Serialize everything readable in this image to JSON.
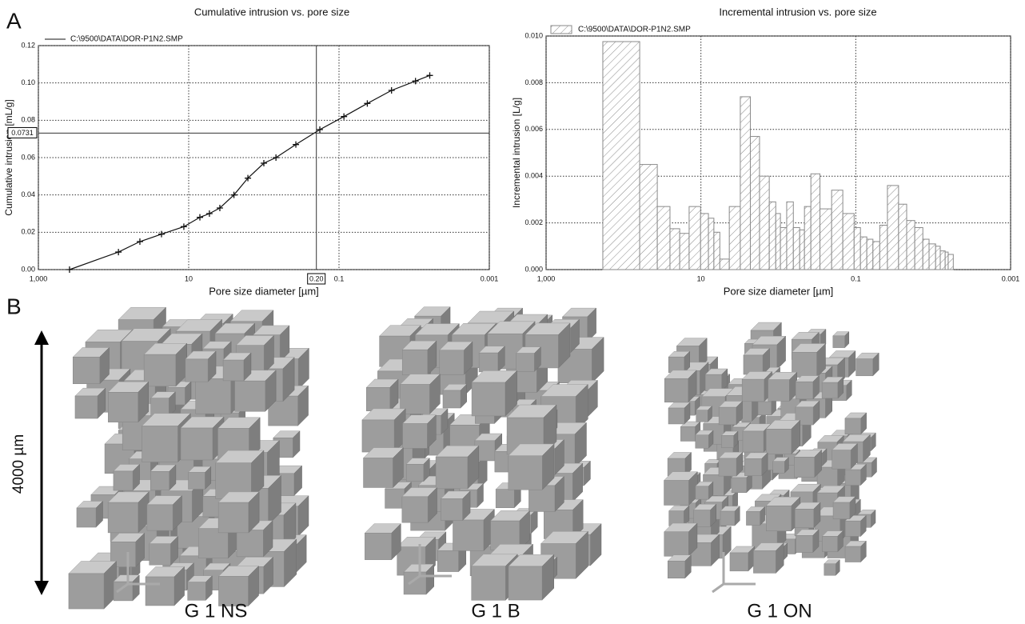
{
  "panel_labels": [
    "A",
    "B"
  ],
  "chart_data": [
    {
      "type": "line",
      "title": "Cumulative intrusion vs. pore size",
      "x_label": "Pore size diameter [µm]",
      "y_label": "Cumulative intrusion [mL/g]",
      "x_scale": "log",
      "xlim": [
        1000,
        0.001
      ],
      "xticks": [
        {
          "value": 1000,
          "label": "1,000"
        },
        10,
        0.1,
        0.001
      ],
      "ylim": [
        0,
        0.12
      ],
      "yticks": [
        {
          "value": 0,
          "label": "0.00"
        },
        {
          "value": 0.02,
          "label": "0.02"
        },
        {
          "value": 0.04,
          "label": "0.04"
        },
        {
          "value": 0.06,
          "label": "0.06"
        },
        {
          "value": 0.08,
          "label": "0.08"
        },
        {
          "value": 0.1,
          "label": "0.10"
        },
        {
          "value": 0.12,
          "label": "0.12"
        }
      ],
      "grid": true,
      "legend": "upper left",
      "cursor": {
        "x": {
          "value": 0.2,
          "label": "0.20"
        },
        "y": {
          "value": 0.0731,
          "label": "0.0731"
        }
      },
      "x": [
        385,
        86,
        44.6,
        23,
        11.6,
        7.1,
        5.3,
        3.85,
        2.5,
        1.63,
        1.0,
        0.69,
        0.375,
        0.18,
        0.086,
        0.042,
        0.02,
        0.0096,
        0.0062
      ],
      "series": [
        {
          "name": "C:\\9500\\DATA\\DOR-P1N2.SMP",
          "color": "#111111",
          "values": [
            0.0,
            0.0094,
            0.015,
            0.019,
            0.023,
            0.028,
            0.03,
            0.033,
            0.04,
            0.049,
            0.057,
            0.06,
            0.067,
            0.075,
            0.082,
            0.089,
            0.096,
            0.101,
            0.104
          ]
        }
      ]
    },
    {
      "type": "histogram",
      "title": "Incremental intrusion vs. pore size",
      "x_label": "Pore size diameter [µm]",
      "y_label": "Incremental intrusion [L/g]",
      "x_scale": "log",
      "xlim": [
        1000,
        0.001
      ],
      "xticks": [
        {
          "value": 1000,
          "label": "1,000"
        },
        10,
        0.1,
        0.001
      ],
      "ylim": [
        0,
        0.01
      ],
      "yticks": [
        {
          "value": 0,
          "label": "0.000"
        },
        {
          "value": 0.002,
          "label": "0.002"
        },
        {
          "value": 0.004,
          "label": "0.004"
        },
        {
          "value": 0.006,
          "label": "0.006"
        },
        {
          "value": 0.008,
          "label": "0.008"
        },
        {
          "value": 0.01,
          "label": "0.010"
        }
      ],
      "grid": true,
      "legend": "upper left",
      "bins": [
        185,
        61.8,
        36.6,
        25.1,
        18.8,
        14.2,
        10.1,
        8.0,
        6.8,
        5.7,
        4.3,
        3.1,
        2.3,
        1.75,
        1.31,
        1.08,
        0.94,
        0.78,
        0.64,
        0.53,
        0.46,
        0.38,
        0.29,
        0.205,
        0.147,
        0.105,
        0.087,
        0.072,
        0.06,
        0.049,
        0.039,
        0.028,
        0.022,
        0.0173,
        0.0136,
        0.0113,
        0.0093,
        0.0081,
        0.007,
        0.0064,
        0.0055
      ],
      "series": [
        {
          "name": "C:\\9500\\DATA\\DOR-P1N2.SMP",
          "color": "#8a8a8a",
          "values": [
            0.00976,
            0.0045,
            0.0027,
            0.00175,
            0.00155,
            0.0027,
            0.0024,
            0.0022,
            0.0016,
            0.00045,
            0.0027,
            0.0074,
            0.0057,
            0.004,
            0.0029,
            0.0024,
            0.0018,
            0.0029,
            0.0018,
            0.0017,
            0.0027,
            0.0041,
            0.0026,
            0.0034,
            0.0024,
            0.0018,
            0.0014,
            0.0013,
            0.0012,
            0.0019,
            0.0036,
            0.0028,
            0.0021,
            0.0018,
            0.0013,
            0.0011,
            0.001,
            0.0008,
            0.00075,
            0.00065
          ]
        }
      ]
    }
  ],
  "panel_b": {
    "scale": "4000 µm",
    "samples": [
      "G 1 NS",
      "G 1 B",
      "G 1 ON"
    ]
  }
}
